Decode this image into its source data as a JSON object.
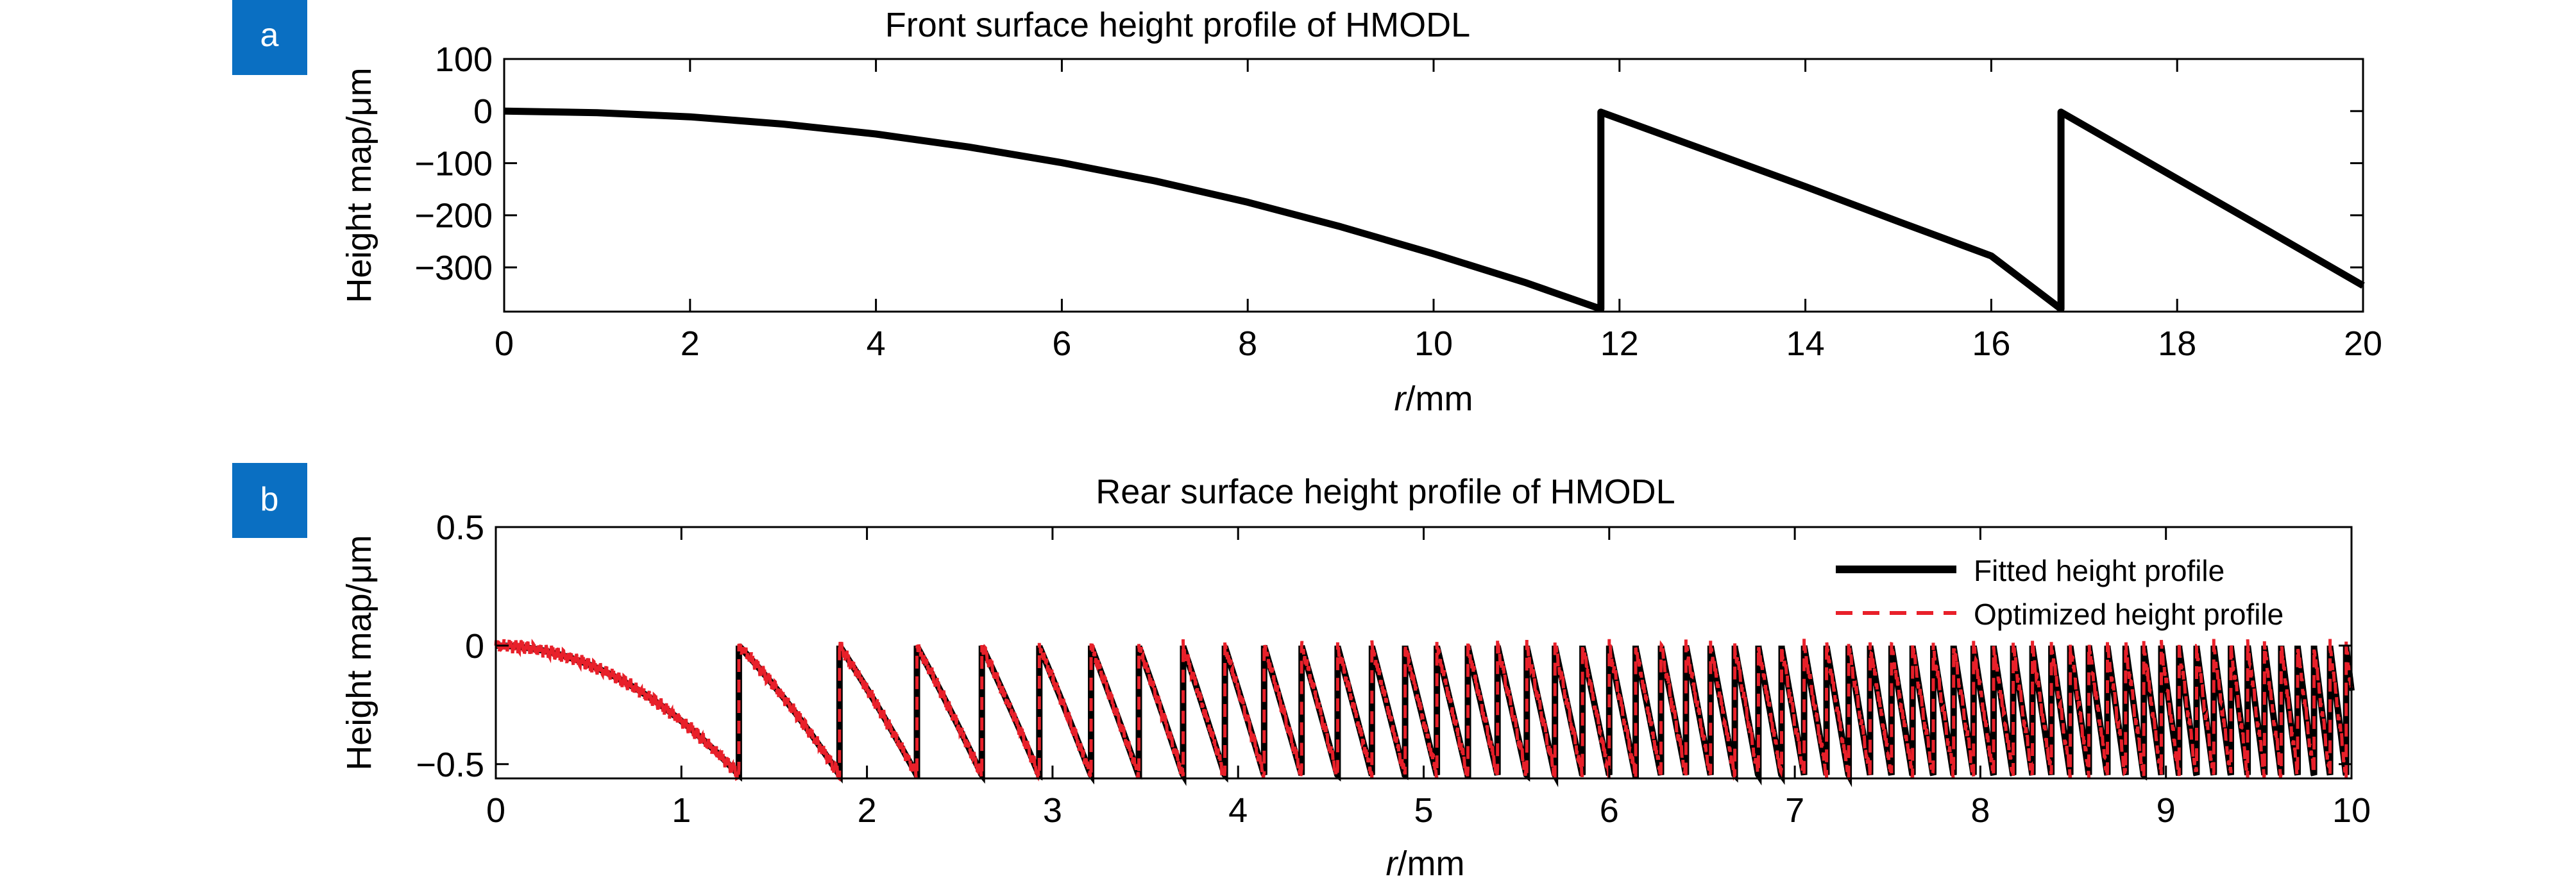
{
  "chart_data": [
    {
      "panel": "a",
      "type": "line",
      "title": "Front surface height profile of HMODL",
      "xlabel_italic": "r",
      "xlabel_rest": "/mm",
      "ylabel": "Height map/μm",
      "xlim": [
        0,
        20
      ],
      "ylim": [
        -385,
        100
      ],
      "xticks": [
        0,
        2,
        4,
        6,
        8,
        10,
        12,
        14,
        16,
        18,
        20
      ],
      "yticks": [
        100,
        0,
        -100,
        -200,
        -300
      ],
      "ytick_labels": [
        "100",
        "0",
        "−100",
        "−200",
        "−300"
      ],
      "grid": false,
      "legend": null,
      "series": [
        {
          "color": "#000000",
          "style": "solid",
          "x": [
            0,
            1,
            2,
            3,
            4,
            5,
            6,
            7,
            8,
            9,
            10,
            11,
            11.8,
            11.8,
            13,
            14,
            15,
            16,
            16.75,
            16.75,
            18,
            19,
            20
          ],
          "y": [
            0,
            -3,
            -11,
            -25,
            -44,
            -69,
            -99,
            -134,
            -175,
            -222,
            -274,
            -330,
            -380,
            -2,
            -80,
            -145,
            -212,
            -278,
            -380,
            -2,
            -130,
            -232,
            -335
          ]
        }
      ]
    },
    {
      "panel": "b",
      "type": "line",
      "title": "Rear surface height profile of HMODL",
      "xlabel_italic": "r",
      "xlabel_rest": "/mm",
      "ylabel": "Height map/μm",
      "xlim": [
        0,
        10
      ],
      "ylim": [
        -0.56,
        0.5
      ],
      "xticks": [
        0,
        1,
        2,
        3,
        4,
        5,
        6,
        7,
        8,
        9,
        10
      ],
      "yticks": [
        0.5,
        0,
        -0.5
      ],
      "ytick_labels": [
        "0.5",
        "0",
        "−0.5"
      ],
      "grid": false,
      "legend": "top-right",
      "profile": {
        "sag_per_mm2": 0.318,
        "depth": 0.545
      },
      "series": [
        {
          "name": "Fitted height profile",
          "color": "#000000",
          "style": "solid"
        },
        {
          "name": "Optimized height profile",
          "color": "#e8202a",
          "style": "dashed"
        }
      ]
    }
  ],
  "panel_badges": [
    "a",
    "b"
  ],
  "colors": {
    "badge": "#0a6fc2",
    "fitted": "#000000",
    "optimized": "#e8202a"
  }
}
